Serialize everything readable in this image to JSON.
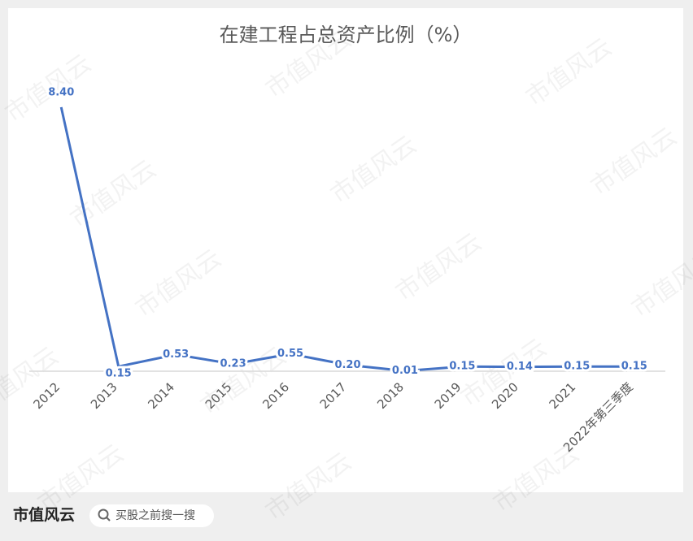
{
  "chart_data": {
    "type": "line",
    "title": "在建工程占总资产比例（%）",
    "categories": [
      "2012",
      "2013",
      "2014",
      "2015",
      "2016",
      "2017",
      "2018",
      "2019",
      "2020",
      "2021",
      "2022年第三季度"
    ],
    "series": [
      {
        "name": "在建工程占总资产比例",
        "color": "#4472c4",
        "values": [
          8.4,
          0.15,
          0.53,
          0.23,
          0.55,
          0.2,
          0.01,
          0.15,
          0.14,
          0.15,
          0.15
        ],
        "value_labels": [
          "8.40",
          "0.15",
          "0.53",
          "0.23",
          "0.55",
          "0.20",
          "0.01",
          "0.15",
          "0.14",
          "0.15",
          "0.15"
        ]
      }
    ],
    "ylim": [
      0,
      10
    ],
    "grid": false
  },
  "watermark": "市值风云",
  "footer": {
    "logo": "市值风云",
    "search": "买股之前搜一搜"
  }
}
